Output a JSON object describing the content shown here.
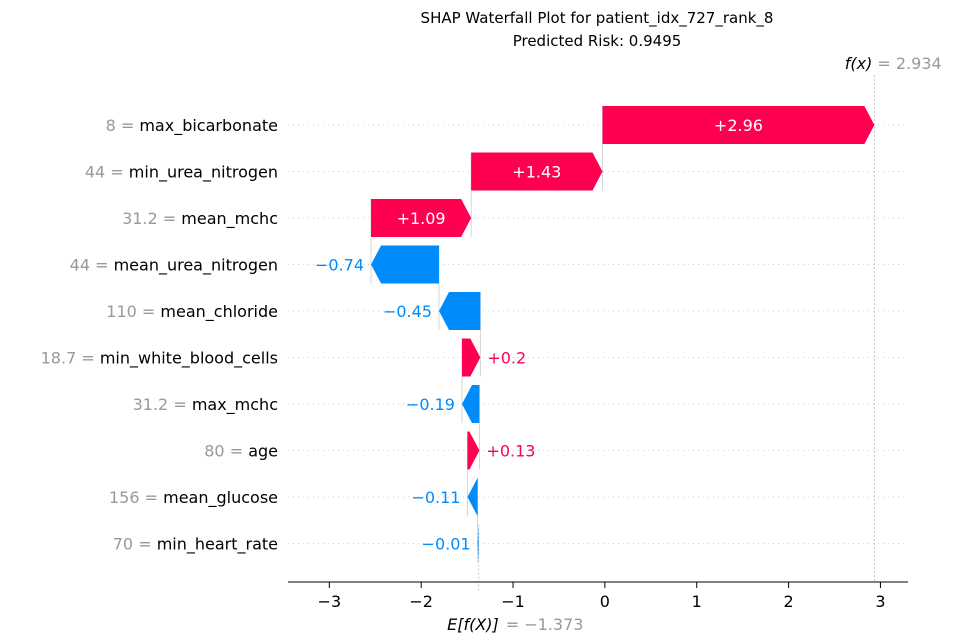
{
  "chart_data": {
    "type": "waterfall",
    "title": "SHAP Waterfall Plot for patient_idx_727_rank_8",
    "subtitle": "Predicted Risk: 0.9495",
    "base_value": -1.373,
    "base_label": "E[f(X)]",
    "base_value_text": "= −1.373",
    "final_value": 2.934,
    "final_label": "f(x)",
    "final_value_text": "= 2.934",
    "xlim": [
      -3.45,
      3.3
    ],
    "xticks": [
      {
        "value": -3,
        "label": "−3"
      },
      {
        "value": -2,
        "label": "−2"
      },
      {
        "value": -1,
        "label": "−1"
      },
      {
        "value": 0,
        "label": "0"
      },
      {
        "value": 1,
        "label": "1"
      },
      {
        "value": 2,
        "label": "2"
      },
      {
        "value": 3,
        "label": "3"
      }
    ],
    "features": [
      {
        "value_text": "8 =",
        "name": "max_bicarbonate",
        "shap": 2.96,
        "label": "+2.96"
      },
      {
        "value_text": "44 =",
        "name": "min_urea_nitrogen",
        "shap": 1.43,
        "label": "+1.43"
      },
      {
        "value_text": "31.2 =",
        "name": "mean_mchc",
        "shap": 1.09,
        "label": "+1.09"
      },
      {
        "value_text": "44 =",
        "name": "mean_urea_nitrogen",
        "shap": -0.74,
        "label": "−0.74"
      },
      {
        "value_text": "110 =",
        "name": "mean_chloride",
        "shap": -0.45,
        "label": "−0.45"
      },
      {
        "value_text": "18.7 =",
        "name": "min_white_blood_cells",
        "shap": 0.2,
        "label": "+0.2"
      },
      {
        "value_text": "31.2 =",
        "name": "max_mchc",
        "shap": -0.19,
        "label": "−0.19"
      },
      {
        "value_text": "80 =",
        "name": "age",
        "shap": 0.13,
        "label": "+0.13"
      },
      {
        "value_text": "156 =",
        "name": "mean_glucose",
        "shap": -0.11,
        "label": "−0.11"
      },
      {
        "value_text": "70 =",
        "name": "min_heart_rate",
        "shap": -0.01,
        "label": "−0.01"
      }
    ],
    "colors": {
      "positive": "#ff0051",
      "negative": "#008bfb",
      "muted_text": "#999999"
    }
  }
}
